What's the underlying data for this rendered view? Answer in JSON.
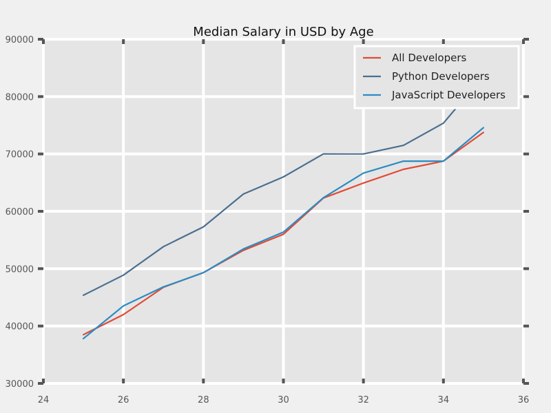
{
  "chart_data": {
    "type": "line",
    "title": "Median Salary in USD by Age",
    "xlabel": "",
    "ylabel": "",
    "xlim": [
      24,
      36
    ],
    "ylim": [
      30000,
      90000
    ],
    "xticks": [
      "24",
      "26",
      "28",
      "30",
      "32",
      "34",
      "36"
    ],
    "yticks": [
      "30000",
      "40000",
      "50000",
      "60000",
      "70000",
      "80000",
      "90000"
    ],
    "grid": true,
    "legend_position": "top-right",
    "x": [
      25,
      26,
      27,
      28,
      29,
      30,
      31,
      32,
      33,
      34,
      35
    ],
    "series": [
      {
        "name": "All Developers",
        "color": "#e24a33",
        "values": [
          38496,
          42000,
          46752,
          49320,
          53200,
          56000,
          62316,
          64928,
          67317,
          68748,
          73752
        ]
      },
      {
        "name": "Python Developers",
        "color": "#4a6f8f",
        "values": [
          45372,
          48876,
          53850,
          57287,
          63016,
          65998,
          70003,
          70000,
          71496,
          75370,
          83640
        ]
      },
      {
        "name": "JavaScript Developers",
        "color": "#2b8cc4",
        "values": [
          37810,
          43515,
          46823,
          49293,
          53437,
          56373,
          62375,
          66674,
          68745,
          68746,
          74583
        ]
      }
    ]
  }
}
